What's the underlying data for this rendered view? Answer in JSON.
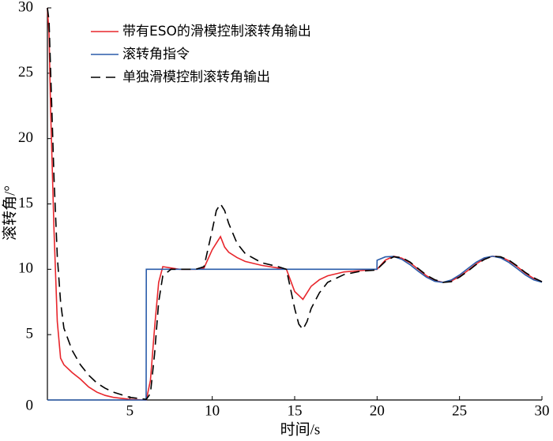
{
  "chart_data": {
    "type": "line",
    "xlabel": "时间/s",
    "ylabel": "滚转角/°",
    "x": [
      0,
      0.1,
      0.2,
      0.4,
      0.6,
      0.8,
      1,
      1.5,
      2,
      2.5,
      3,
      3.5,
      4,
      5,
      5.99,
      6,
      6.25,
      6.5,
      6.75,
      7,
      7.5,
      8,
      9,
      9.5,
      10,
      10.25,
      10.5,
      10.75,
      11,
      11.5,
      12,
      13,
      14,
      14.5,
      15,
      15.25,
      15.5,
      15.75,
      16,
      16.5,
      17,
      18,
      19,
      19.99,
      20,
      20.5,
      21,
      21.5,
      22,
      22.5,
      23,
      23.5,
      24,
      24.5,
      25,
      25.5,
      26,
      26.5,
      27,
      27.5,
      28,
      28.5,
      29,
      29.5,
      30
    ],
    "series": [
      {
        "name": "带有ESO的滑模控制滚转角输出",
        "color": "#e8262c",
        "dash": false,
        "values": [
          30,
          28,
          22,
          13,
          6,
          3.2,
          2.7,
          2.1,
          1.6,
          1.0,
          0.6,
          0.35,
          0.2,
          0.05,
          0,
          0,
          1.5,
          5.5,
          9,
          10.2,
          10.1,
          10,
          10,
          10.1,
          11.5,
          12,
          12.5,
          11.7,
          11.3,
          10.9,
          10.6,
          10.3,
          10.1,
          10,
          8.3,
          8,
          7.7,
          8.2,
          8.7,
          9.2,
          9.5,
          9.8,
          9.9,
          10,
          10,
          10.7,
          11,
          10.85,
          10.5,
          10,
          9.5,
          9.15,
          9,
          9.1,
          9.45,
          9.9,
          10.4,
          10.8,
          11,
          10.95,
          10.65,
          10.2,
          9.7,
          9.3,
          9.05
        ]
      },
      {
        "name": "滚转角指令",
        "color": "#2a5caa",
        "dash": false,
        "values": [
          0,
          0,
          0,
          0,
          0,
          0,
          0,
          0,
          0,
          0,
          0,
          0,
          0,
          0,
          0,
          10,
          10,
          10,
          10,
          10,
          10,
          10,
          10,
          10,
          10,
          10,
          10,
          10,
          10,
          10,
          10,
          10,
          10,
          10,
          10,
          10,
          10,
          10,
          10,
          10,
          10,
          10,
          10,
          10,
          10.69,
          10.95,
          10.98,
          10.76,
          10.35,
          9.85,
          9.39,
          9.08,
          9.0,
          9.18,
          9.56,
          10.05,
          10.53,
          10.87,
          11.0,
          10.87,
          10.52,
          10.05,
          9.56,
          9.19,
          9.01
        ]
      },
      {
        "name": "单独滑模控制滚转角输出",
        "color": "#000000",
        "dash": true,
        "values": [
          30,
          29,
          25,
          17,
          11,
          7.5,
          5.5,
          3.8,
          2.7,
          1.9,
          1.3,
          0.9,
          0.6,
          0.2,
          0.05,
          0.05,
          0.5,
          3.5,
          7.5,
          9.5,
          10,
          10,
          10,
          10.2,
          13,
          14.5,
          15,
          14.5,
          13.5,
          12,
          11.2,
          10.5,
          10.2,
          10,
          7,
          5.8,
          5.4,
          6,
          7,
          8.2,
          9,
          9.6,
          9.85,
          9.95,
          10,
          10.6,
          10.95,
          10.9,
          10.55,
          10.05,
          9.55,
          9.2,
          9,
          9.05,
          9.4,
          9.85,
          10.35,
          10.75,
          11,
          10.95,
          10.7,
          10.25,
          9.75,
          9.35,
          9.05
        ]
      }
    ],
    "xlim": [
      0,
      30
    ],
    "ylim": [
      0,
      30
    ],
    "xticks": [
      5,
      10,
      15,
      20,
      25,
      30
    ],
    "yticks": [
      0,
      5,
      10,
      15,
      20,
      25,
      30
    ],
    "legend": "upper-left"
  }
}
